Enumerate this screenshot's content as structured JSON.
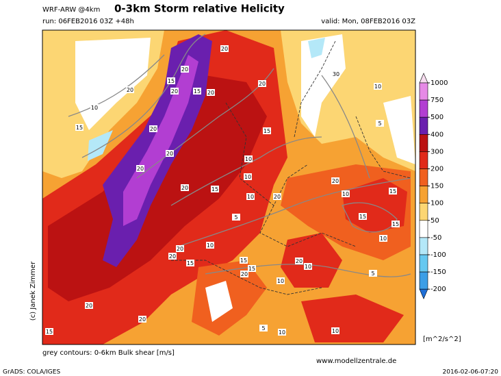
{
  "header": {
    "model": "WRF-ARW @4km",
    "title": "0-3km Storm relative Helicity",
    "run": "run: 06FEB2016 03Z +48h",
    "valid": "valid: Mon, 08FEB2016 03Z"
  },
  "colorbar": {
    "ticks": [
      1000,
      750,
      500,
      400,
      300,
      200,
      150,
      100,
      50,
      -50,
      -100,
      -150,
      -200
    ],
    "colors": [
      "#f6dcef",
      "#e68ae6",
      "#b23ed2",
      "#6a1fae",
      "#bb1212",
      "#e12a1a",
      "#f0601f",
      "#f6a233",
      "#fcd673",
      "#ffffff",
      "#b4e8f8",
      "#66c8f0",
      "#3c9ee6",
      "#1f6fd6"
    ],
    "unit": "[m^2/s^2]"
  },
  "map": {
    "contour_labels": [
      20,
      20,
      15,
      20,
      15,
      20,
      20,
      30,
      10,
      20,
      10,
      15,
      20,
      5,
      20,
      15,
      10,
      20,
      20,
      20,
      15,
      10,
      15,
      10,
      10,
      20,
      15,
      15,
      5,
      10,
      20,
      10,
      20,
      20,
      15,
      15,
      15,
      20,
      10,
      10,
      5,
      20,
      20,
      10,
      10,
      15,
      5
    ],
    "copyright": "(c) Janek Zimmer"
  },
  "footer": {
    "contours": "grey contours: 0-6km Bulk shear [m/s]",
    "website": "www.modellzentrale.de",
    "software": "GrADS: COLA/IGES",
    "timestamp": "2016-02-06-07:20"
  }
}
